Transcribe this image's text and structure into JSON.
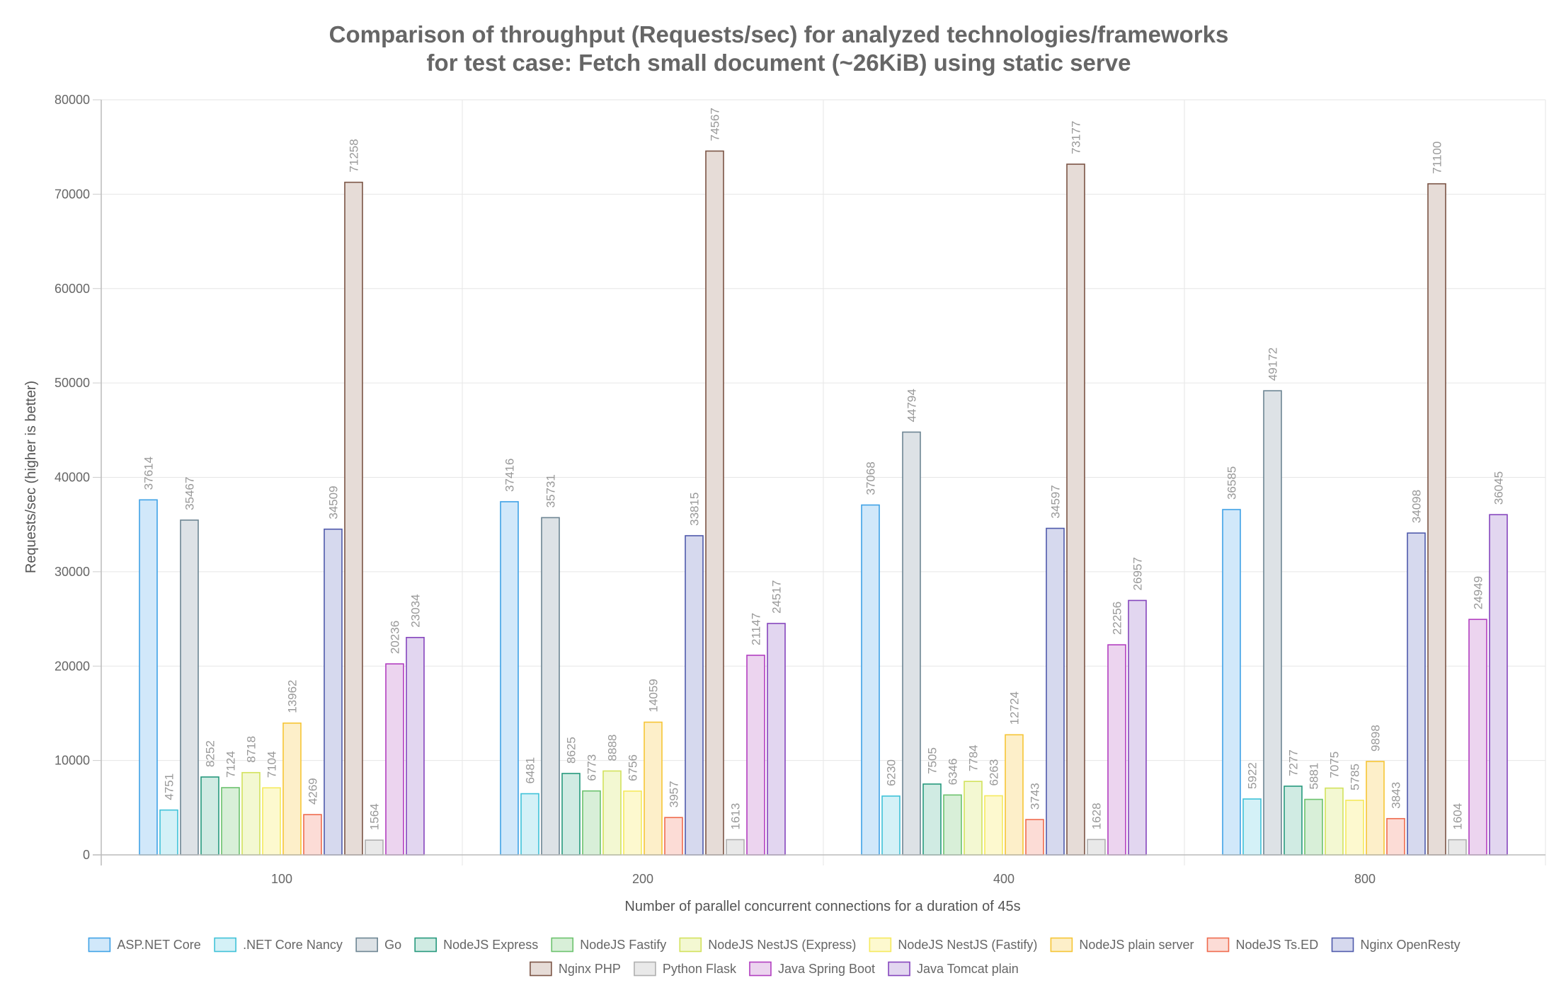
{
  "chart_data": {
    "type": "bar",
    "title": [
      "Comparison of throughput (Requests/sec) for analyzed technologies/frameworks",
      "for test case: Fetch small document (~26KiB) using static serve"
    ],
    "xlabel": "Number of parallel concurrent connections for a duration of 45s",
    "ylabel": "Requests/sec (higher is better)",
    "ylim": [
      0,
      80000
    ],
    "yticks": [
      "0",
      "10000",
      "20000",
      "30000",
      "40000",
      "50000",
      "60000",
      "70000",
      "80000"
    ],
    "grid": true,
    "legend_position": "bottom",
    "categories": [
      "100",
      "200",
      "400",
      "800"
    ],
    "series": [
      {
        "name": "ASP.NET Core",
        "values": [
          37614,
          37416,
          37068,
          36585
        ],
        "fill": "#d1e8fa",
        "stroke": "#3fa2e6"
      },
      {
        "name": ".NET Core Nancy",
        "values": [
          4751,
          6481,
          6230,
          5922
        ],
        "fill": "#d4f1f7",
        "stroke": "#3fc2d8"
      },
      {
        "name": "Go",
        "values": [
          35467,
          35731,
          44794,
          49172
        ],
        "fill": "#dde2e6",
        "stroke": "#6d8593"
      },
      {
        "name": "NodeJS Express",
        "values": [
          8252,
          8625,
          7505,
          7277
        ],
        "fill": "#d0ebe3",
        "stroke": "#26997d"
      },
      {
        "name": "NodeJS Fastify",
        "values": [
          7124,
          6773,
          6346,
          5881
        ],
        "fill": "#d8efd8",
        "stroke": "#6cc26d"
      },
      {
        "name": "NodeJS NestJS (Express)",
        "values": [
          8718,
          8888,
          7784,
          7075
        ],
        "fill": "#f3f8d2",
        "stroke": "#d2e25c"
      },
      {
        "name": "NodeJS NestJS (Fastify)",
        "values": [
          7104,
          6756,
          6263,
          5785
        ],
        "fill": "#fdf9cf",
        "stroke": "#f5ea5d"
      },
      {
        "name": "NodeJS plain server",
        "values": [
          13962,
          14059,
          12724,
          9898
        ],
        "fill": "#fdefc9",
        "stroke": "#f6c535"
      },
      {
        "name": "NodeJS Ts.ED",
        "values": [
          4269,
          3957,
          3743,
          3843
        ],
        "fill": "#fcdcd6",
        "stroke": "#ef6b4e"
      },
      {
        "name": "Nginx OpenResty",
        "values": [
          34509,
          33815,
          34597,
          34098
        ],
        "fill": "#d6d9ee",
        "stroke": "#4f5aab"
      },
      {
        "name": "Nginx PHP",
        "values": [
          71258,
          74567,
          73177,
          71100
        ],
        "fill": "#e6dcd7",
        "stroke": "#7b5445"
      },
      {
        "name": "Python Flask",
        "values": [
          1564,
          1613,
          1628,
          1604
        ],
        "fill": "#e9e9e9",
        "stroke": "#b0b0b0"
      },
      {
        "name": "Java Spring Boot",
        "values": [
          20236,
          21147,
          22256,
          24949
        ],
        "fill": "#ecd4ef",
        "stroke": "#b23ec0"
      },
      {
        "name": "Java Tomcat plain",
        "values": [
          23034,
          24517,
          26957,
          36045
        ],
        "fill": "#e2d6f0",
        "stroke": "#8545bd"
      }
    ]
  }
}
